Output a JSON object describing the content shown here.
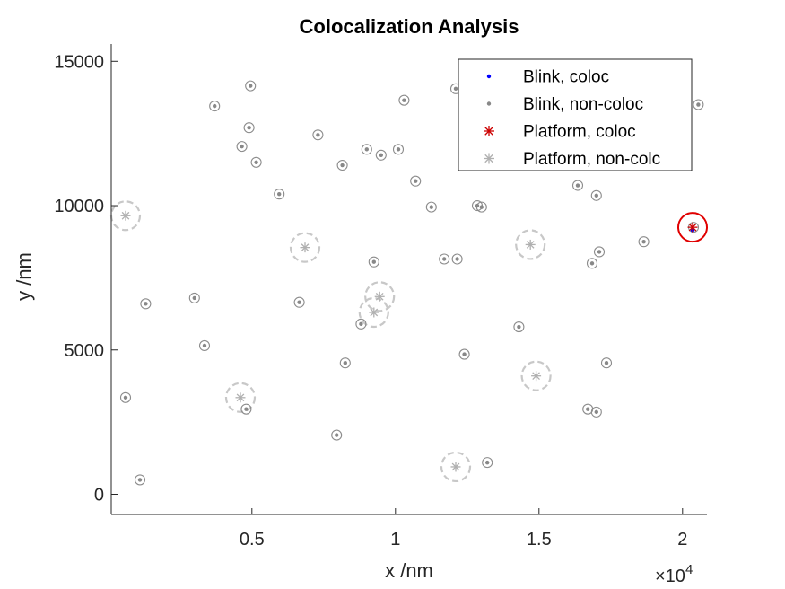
{
  "chart_data": {
    "type": "scatter",
    "title": "Colocalization Analysis",
    "xlabel": "x /nm",
    "ylabel": "y /nm",
    "x_exponent_label": "×10",
    "x_exponent_power": "4",
    "xlim": [
      100,
      20850
    ],
    "ylim": [
      -700,
      15600
    ],
    "xticks": [
      5000,
      10000,
      15000,
      20000
    ],
    "xtick_labels": [
      "0.5",
      "1",
      "1.5",
      "2"
    ],
    "yticks": [
      0,
      5000,
      10000,
      15000
    ],
    "ytick_labels": [
      "0",
      "5000",
      "10000",
      "15000"
    ],
    "grid": false,
    "legend_position": "top-right",
    "series": [
      {
        "name": "Blink, coloc",
        "marker": "dot",
        "color": "#0000ff",
        "x": [
          20350
        ],
        "y": [
          9150
        ]
      },
      {
        "name": "Blink, non-coloc",
        "marker": "dot",
        "color": "#888888",
        "x": [
          4950,
          4900,
          3700,
          7300,
          4650,
          5150,
          9000,
          9500,
          10100,
          8150,
          10300,
          12100,
          20550,
          10700,
          11250,
          12850,
          13000,
          16350,
          17000,
          5950,
          18650,
          17100,
          16850,
          11700,
          12150,
          9250,
          1300,
          3000,
          6650,
          8800,
          14300,
          3350,
          12400,
          8250,
          17350,
          600,
          4800,
          16700,
          17000,
          7950,
          13200,
          1100
        ],
        "y": [
          14150,
          12700,
          13450,
          12450,
          12050,
          11500,
          11950,
          11750,
          11950,
          11400,
          13650,
          14050,
          13500,
          10850,
          9950,
          10000,
          9950,
          10700,
          10350,
          10400,
          8750,
          8400,
          8000,
          8150,
          8150,
          8050,
          6600,
          6800,
          6650,
          5900,
          5800,
          5150,
          4850,
          4550,
          4550,
          3350,
          2950,
          2950,
          2850,
          2050,
          1100,
          500
        ]
      },
      {
        "name": "Platform, coloc",
        "marker": "asterisk",
        "color": "#cc0000",
        "x": [
          20350
        ],
        "y": [
          9250
        ]
      },
      {
        "name": "Platform, non-colc",
        "marker": "asterisk",
        "color": "#b0b0b0",
        "x": [
          600,
          6850,
          9450,
          9250,
          4600,
          14700,
          14900,
          12100
        ],
        "y": [
          9650,
          8550,
          6850,
          6300,
          3350,
          8650,
          4100,
          950
        ]
      }
    ],
    "highlight_circle": {
      "x": 20350,
      "y": 9250,
      "color": "#e00000"
    },
    "search_radius_circles": {
      "x": [
        600,
        6850,
        9450,
        9250,
        4600,
        14700,
        14900,
        12100
      ],
      "y": [
        9650,
        8550,
        6850,
        6300,
        3350,
        8650,
        4100,
        950
      ]
    }
  }
}
